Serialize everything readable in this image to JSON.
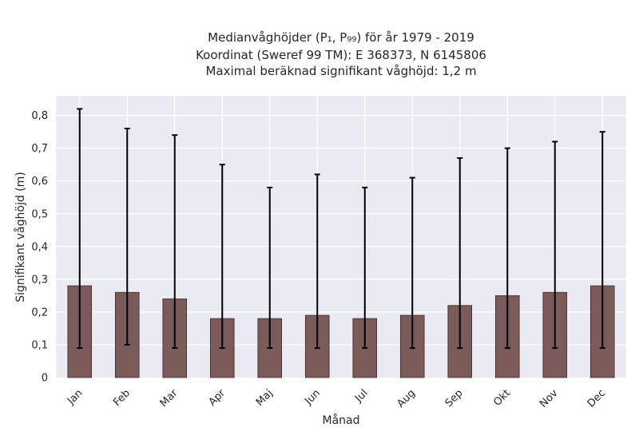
{
  "chart_data": {
    "type": "bar",
    "title_lines": [
      "Medianvåghöjder (P₁, P₉₉) för år 1979 - 2019",
      "Koordinat (Sweref 99 TM): E 368373, N 6145806",
      "Maximal beräknad signifikant våghöjd: 1,2 m"
    ],
    "xlabel": "Månad",
    "ylabel": "Signifikant våghöjd (m)",
    "categories": [
      "Jan",
      "Feb",
      "Mar",
      "Apr",
      "Maj",
      "Jun",
      "Jul",
      "Aug",
      "Sep",
      "Okt",
      "Nov",
      "Dec"
    ],
    "values": [
      0.28,
      0.26,
      0.24,
      0.18,
      0.18,
      0.19,
      0.18,
      0.19,
      0.22,
      0.25,
      0.26,
      0.28
    ],
    "p1": [
      0.09,
      0.1,
      0.09,
      0.09,
      0.09,
      0.09,
      0.09,
      0.09,
      0.09,
      0.09,
      0.09,
      0.09
    ],
    "p99": [
      0.82,
      0.76,
      0.74,
      0.65,
      0.58,
      0.62,
      0.58,
      0.61,
      0.67,
      0.7,
      0.72,
      0.75
    ],
    "ylim": [
      0,
      0.86
    ],
    "yticks": [
      0,
      0.1,
      0.2,
      0.3,
      0.4,
      0.5,
      0.6,
      0.7,
      0.8
    ],
    "ytick_labels": [
      "0",
      "0,1",
      "0,2",
      "0,3",
      "0,4",
      "0,5",
      "0,6",
      "0,7",
      "0,8"
    ],
    "grid": true,
    "colors": {
      "bar_fill": "#7b5a5a",
      "bar_edge": "#3d2b2b",
      "error_bar": "#000000",
      "plot_background": "#eaeaf2",
      "grid": "#ffffff"
    }
  }
}
